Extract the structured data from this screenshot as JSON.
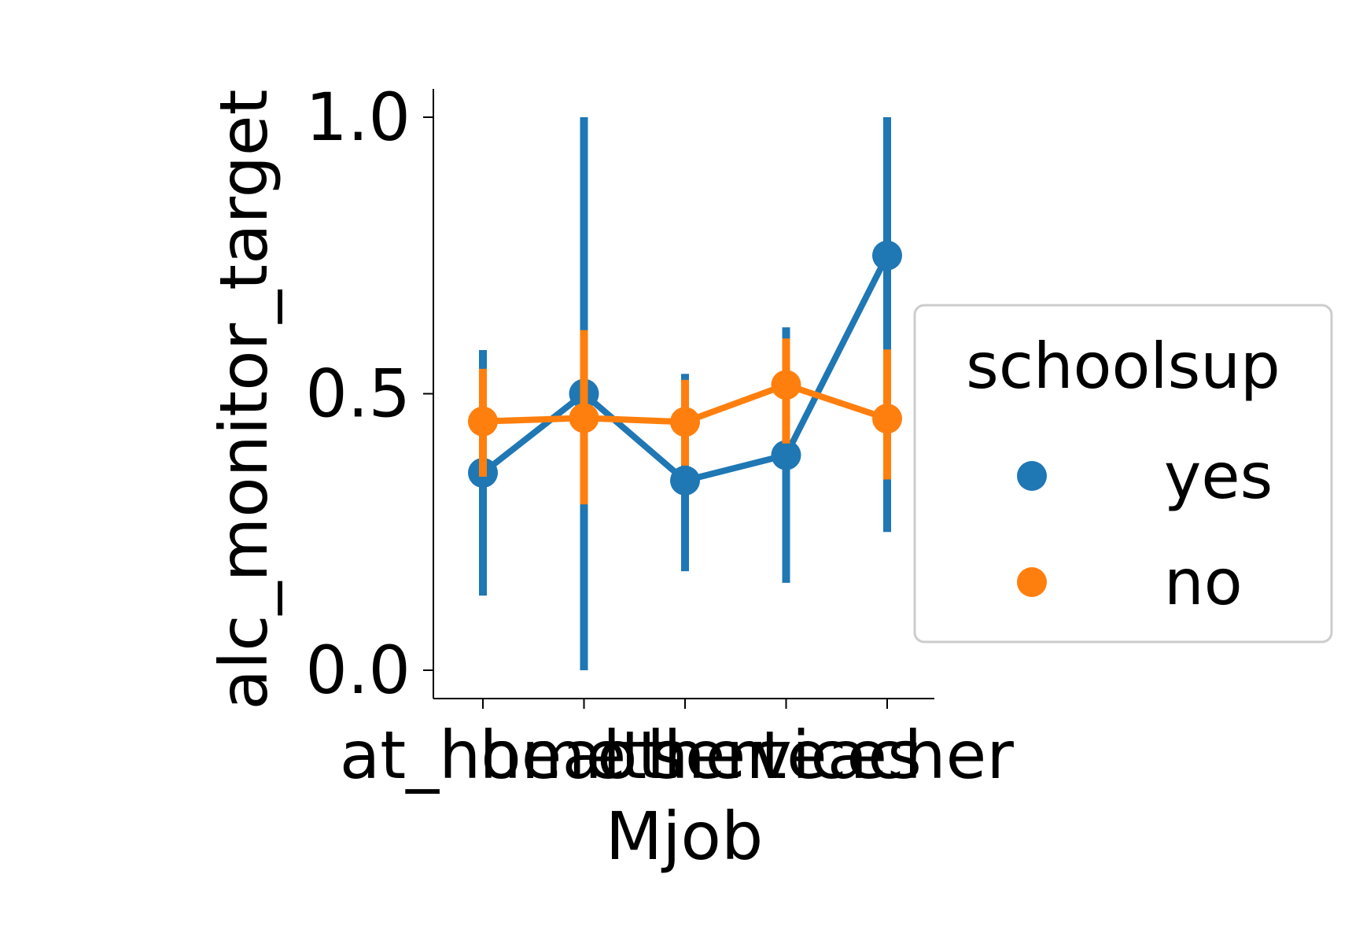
{
  "chart_data": {
    "type": "line",
    "title": "",
    "xlabel": "Mjob",
    "ylabel": "alc_monitor_target",
    "categories": [
      "at_home",
      "health",
      "other",
      "services",
      "teacher"
    ],
    "yticks": [
      "0.0",
      "0.5",
      "1.0"
    ],
    "ylim": [
      -0.05,
      1.05
    ],
    "grid": false,
    "legend": {
      "title": "schoolsup",
      "placement": "center-right"
    },
    "series": [
      {
        "name": "yes",
        "color": "#1f77b4",
        "values": [
          0.357,
          0.5,
          0.343,
          0.389,
          0.75
        ],
        "ci_low": [
          0.135,
          0.0,
          0.179,
          0.158,
          0.25
        ],
        "ci_high": [
          0.579,
          1.0,
          0.536,
          0.62,
          1.0
        ]
      },
      {
        "name": "no",
        "color": "#ff7f0e",
        "values": [
          0.45,
          0.456,
          0.449,
          0.516,
          0.455
        ],
        "ci_low": [
          0.35,
          0.3,
          0.37,
          0.41,
          0.345
        ],
        "ci_high": [
          0.545,
          0.615,
          0.525,
          0.6,
          0.58
        ]
      }
    ]
  }
}
